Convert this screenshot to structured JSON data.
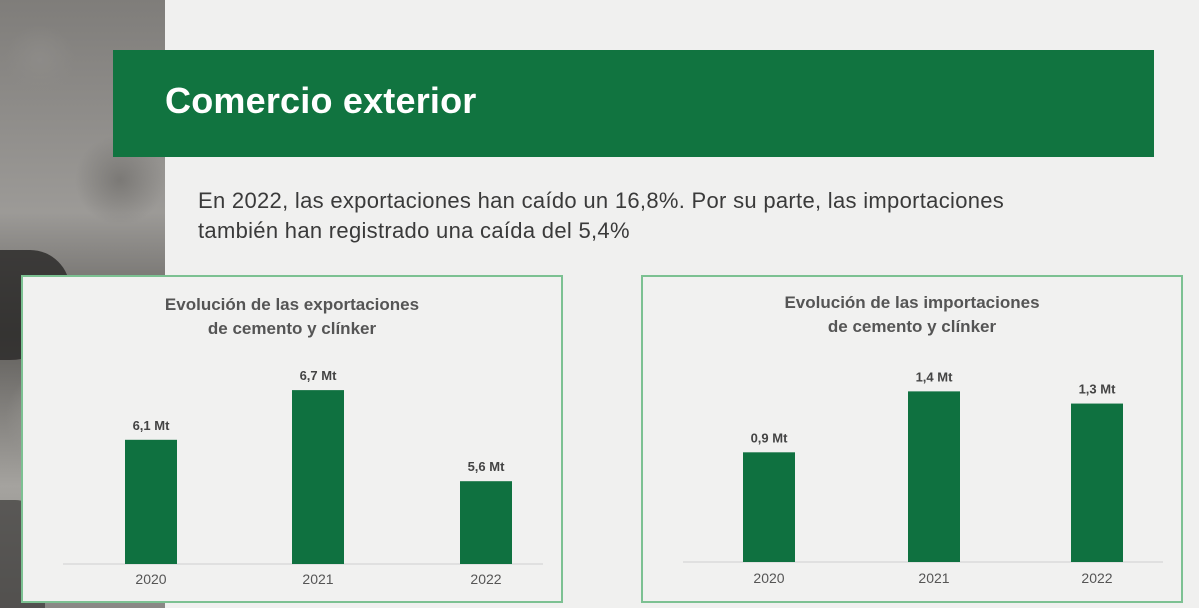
{
  "header": {
    "title": "Comercio exterior"
  },
  "summary": {
    "line1": "En 2022, las exportaciones han caído un 16,8%. Por su parte, las importaciones",
    "line2": "también han registrado una caída del 5,4%"
  },
  "colors": {
    "brand_green": "#117440",
    "bar_green": "#0f7140",
    "panel_border": "#7cc192"
  },
  "chart_data": [
    {
      "type": "bar",
      "title_line1": "Evolución de las exportaciones",
      "title_line2": "de cemento y clínker",
      "categories": [
        "2020",
        "2021",
        "2022"
      ],
      "values": [
        6.1,
        6.7,
        5.6
      ],
      "data_labels": [
        "6,1 Mt",
        "6,7 Mt",
        "5,6 Mt"
      ],
      "unit": "Mt",
      "ylim": [
        4.6,
        7.1
      ],
      "grid": false,
      "legend": "none"
    },
    {
      "type": "bar",
      "title_line1": "Evolución de las importaciones",
      "title_line2": "de cemento y clínker",
      "categories": [
        "2020",
        "2021",
        "2022"
      ],
      "values": [
        0.9,
        1.4,
        1.3
      ],
      "data_labels": [
        "0,9 Mt",
        "1,4 Mt",
        "1,3 Mt"
      ],
      "unit": "Mt",
      "ylim": [
        0,
        1.6
      ],
      "grid": false,
      "legend": "none"
    }
  ]
}
